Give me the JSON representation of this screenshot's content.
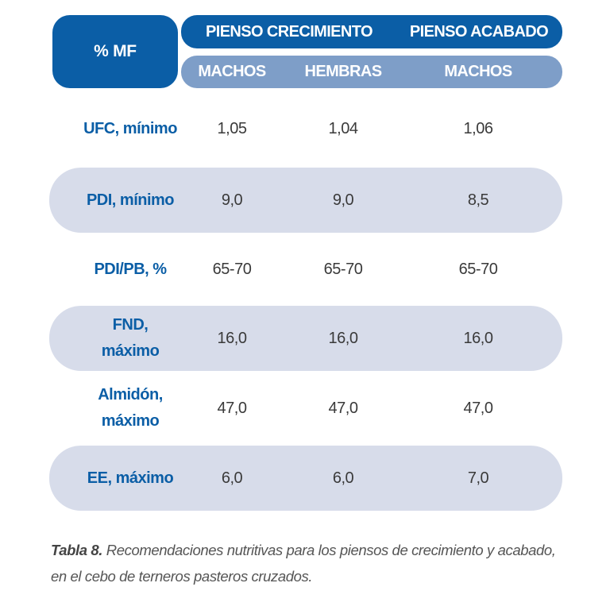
{
  "table": {
    "corner_label": "% MF",
    "groups": [
      {
        "label": "PIENSO CRECIMIENTO"
      },
      {
        "label": "PIENSO ACABADO"
      }
    ],
    "subheaders": [
      "MACHOS",
      "HEMBRAS",
      "MACHOS"
    ],
    "rows": [
      {
        "label": "UFC, mínimo",
        "values": [
          "1,05",
          "1,04",
          "1,06"
        ],
        "shaded": false
      },
      {
        "label": "PDI, mínimo",
        "values": [
          "9,0",
          "9,0",
          "8,5"
        ],
        "shaded": true
      },
      {
        "label": "PDI/PB, %",
        "values": [
          "65-70",
          "65-70",
          "65-70"
        ],
        "shaded": false
      },
      {
        "label": "FND,\nmáximo",
        "values": [
          "16,0",
          "16,0",
          "16,0"
        ],
        "shaded": true
      },
      {
        "label": "Almidón,\nmáximo",
        "values": [
          "47,0",
          "47,0",
          "47,0"
        ],
        "shaded": false
      },
      {
        "label": "EE, máximo",
        "values": [
          "6,0",
          "6,0",
          "7,0"
        ],
        "shaded": true
      }
    ]
  },
  "caption": {
    "lead": "Tabla 8.",
    "text": " Recomendaciones nutritivas para los piensos de crecimiento y acabado, en el cebo de terneros pasteros cruzados."
  },
  "colors": {
    "header_blue": "#0b5ea6",
    "subheader_blue": "#7e9ec8",
    "band": "#d7dcea",
    "label_blue": "#0b5ea6",
    "value_text": "#3a3a3a"
  }
}
